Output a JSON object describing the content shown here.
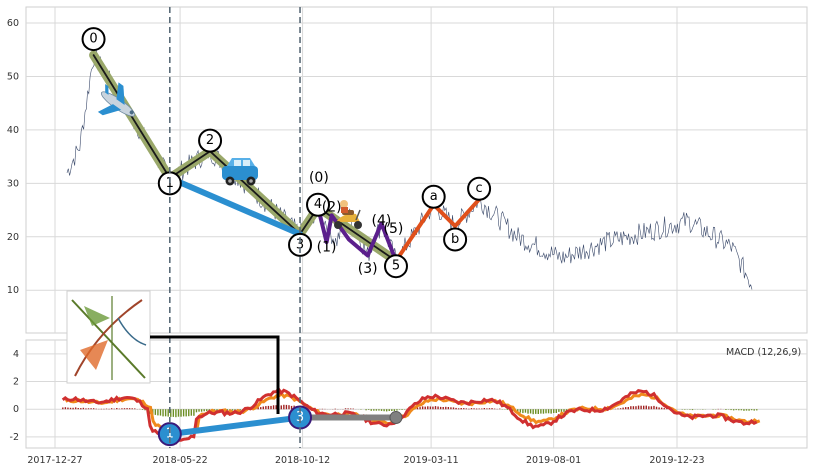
{
  "chart_data": [
    {
      "type": "line",
      "panel": "price",
      "yticks": [
        10,
        20,
        30,
        40,
        50,
        60
      ],
      "ylim": [
        2,
        63
      ],
      "x": [
        "2017-12-27",
        "2018-05-22",
        "2018-10-12",
        "2019-03-11",
        "2019-08-01",
        "2019-12-23"
      ],
      "series_color": "#3b4a6b",
      "wave_labels": [
        {
          "label": "0",
          "date": "2018-02-10",
          "value": 57
        },
        {
          "label": "1",
          "date": "2018-05-10",
          "value": 30
        },
        {
          "label": "2",
          "date": "2018-06-26",
          "value": 38
        },
        {
          "label": "3",
          "date": "2018-10-09",
          "value": 18.5
        },
        {
          "label": "4",
          "date": "2018-10-30",
          "value": 26
        },
        {
          "label": "5",
          "date": "2019-01-29",
          "value": 14.5
        },
        {
          "label": "a",
          "date": "2019-03-14",
          "value": 27.5
        },
        {
          "label": "b",
          "date": "2019-04-08",
          "value": 19.5
        },
        {
          "label": "c",
          "date": "2019-05-06",
          "value": 29
        }
      ],
      "subwave_labels": [
        {
          "label": "(0)",
          "date": "2018-10-31",
          "value": 31
        },
        {
          "label": "(1)",
          "date": "2018-11-09",
          "value": 18
        },
        {
          "label": "(2)",
          "date": "2018-11-15",
          "value": 25.5
        },
        {
          "label": "(3)",
          "date": "2018-12-27",
          "value": 14
        },
        {
          "label": "(4)",
          "date": "2019-01-12",
          "value": 23
        },
        {
          "label": "(5)",
          "date": "2019-01-26",
          "value": 21.5
        }
      ]
    },
    {
      "type": "bar",
      "panel": "macd",
      "legend": "MACD (12,26,9)",
      "yticks": [
        -2,
        0,
        2,
        4
      ],
      "ylim": [
        -2.8,
        5
      ],
      "points": [
        {
          "label": "1",
          "date": "2018-05-10",
          "value": -1.8
        },
        {
          "label": "3",
          "date": "2018-10-09",
          "value": -0.6
        }
      ]
    }
  ],
  "x_ticks": [
    "2017-12-27",
    "2018-05-22",
    "2018-10-12",
    "2019-03-11",
    "2019-08-01",
    "2019-12-23"
  ],
  "icons": [
    "airplane-icon",
    "car-icon",
    "scooter-icon",
    "fibonacci-chart-icon"
  ],
  "colors": {
    "wave_green": "#9aa86a",
    "impulse_black": "#1a1a1a",
    "blue": "#2b8fd0",
    "purple": "#5b1f8c",
    "orange": "#e0501b",
    "macd_orange": "#f08a1c",
    "macd_red": "#d03030",
    "hist_red": "#a02020",
    "hist_green": "#6b8e23"
  }
}
